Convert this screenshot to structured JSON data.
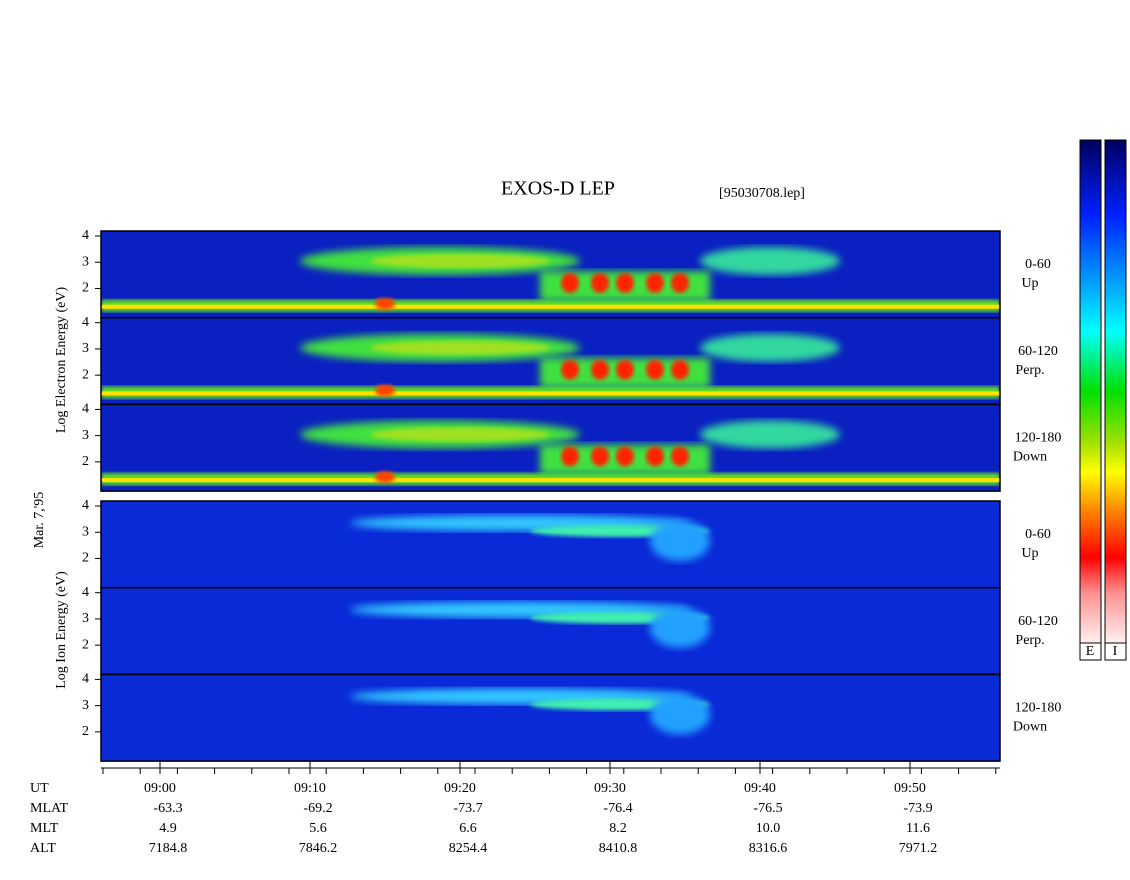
{
  "title": "EXOS-D LEP",
  "file": "[95030708.lep]",
  "electron_label": "Log Electron Energy (eV)",
  "date": "Mar. 7,'95",
  "ion_label": "Log Ion Energy (eV)",
  "electron_panels": [
    {
      "yticks": [
        2,
        3,
        4
      ],
      "pitch": "0-60",
      "direction": "Up"
    },
    {
      "yticks": [
        2,
        3,
        4
      ],
      "pitch": "60-120",
      "direction": "Perp."
    },
    {
      "yticks": [
        2,
        3,
        4
      ],
      "pitch": "120-180",
      "direction": "Down"
    }
  ],
  "ion_panels": [
    {
      "yticks": [
        2,
        3,
        4
      ],
      "pitch": "0-60",
      "direction": "Up"
    },
    {
      "yticks": [
        2,
        3,
        4
      ],
      "pitch": "60-120",
      "direction": "Perp."
    },
    {
      "yticks": [
        2,
        3,
        4
      ],
      "pitch": "120-180",
      "direction": "Down"
    }
  ],
  "colorbar_labels": [
    "E",
    "I"
  ],
  "axis": {
    "row_labels": [
      "UT",
      "MLAT",
      "MLT",
      "ALT"
    ],
    "columns": [
      [
        "09:00",
        "-63.3",
        "4.9",
        "7184.8"
      ],
      [
        "09:10",
        "-69.2",
        "5.6",
        "7846.2"
      ],
      [
        "09:20",
        "-73.7",
        "6.6",
        "8254.4"
      ],
      [
        "09:30",
        "-76.4",
        "8.2",
        "8410.8"
      ],
      [
        "09:40",
        "-76.5",
        "10.0",
        "8316.6"
      ],
      [
        "09:50",
        "-73.9",
        "11.6",
        "7971.2"
      ]
    ]
  }
}
